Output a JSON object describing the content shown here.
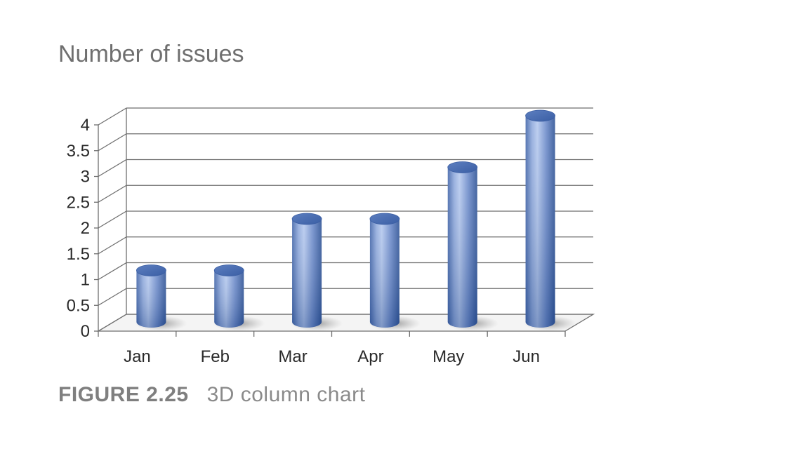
{
  "chart_data": {
    "type": "bar",
    "style": "3d-cylinder-column",
    "title": "Number of issues",
    "xlabel": "",
    "ylabel": "",
    "categories": [
      "Jan",
      "Feb",
      "Mar",
      "Apr",
      "May",
      "Jun"
    ],
    "values": [
      1,
      1,
      2,
      2,
      3,
      4
    ],
    "ylim": [
      0,
      4
    ],
    "yticks": [
      "0",
      "0.5",
      "1",
      "1.5",
      "2",
      "2.5",
      "3",
      "3.5",
      "4"
    ],
    "grid": true,
    "legend": "none",
    "colors": {
      "bar_light": "#b9cdef",
      "bar_mid": "#6f8fcf",
      "bar_dark": "#2f569c",
      "grid": "#6e6e6e",
      "title": "#6f6f6f"
    }
  },
  "caption": {
    "label": "FIGURE 2.25",
    "text": "3D column chart"
  }
}
